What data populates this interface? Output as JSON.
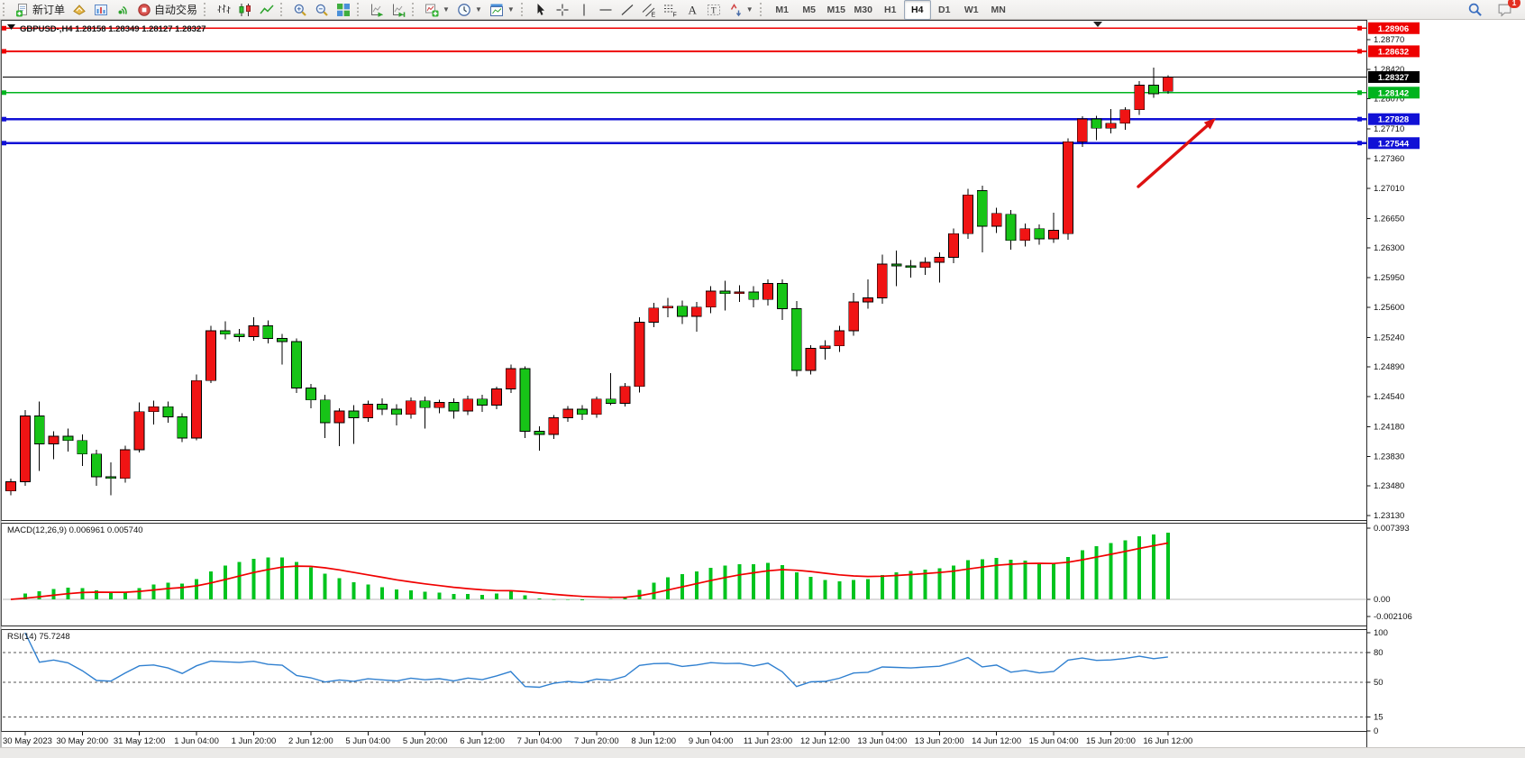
{
  "toolbar": {
    "groups": [
      {
        "items": [
          {
            "name": "new-order",
            "icon": "new-order-icon",
            "label": "新订单"
          },
          {
            "name": "quotes",
            "icon": "quotes-icon"
          },
          {
            "name": "charts",
            "icon": "charts-icon"
          },
          {
            "name": "signals",
            "icon": "signals-icon"
          },
          {
            "name": "autotrading",
            "icon": "autotrading-icon",
            "label": "自动交易"
          }
        ]
      },
      {
        "items": [
          {
            "name": "bar-chart-mode",
            "icon": "bars-icon"
          },
          {
            "name": "candle-chart-mode",
            "icon": "candles-icon"
          },
          {
            "name": "line-chart-mode",
            "icon": "line-icon"
          }
        ]
      },
      {
        "items": [
          {
            "name": "zoom-in",
            "icon": "zoom-in-icon"
          },
          {
            "name": "zoom-out",
            "icon": "zoom-out-icon"
          },
          {
            "name": "tile-windows",
            "icon": "tile-icon"
          }
        ]
      },
      {
        "items": [
          {
            "name": "auto-scroll",
            "icon": "autoscroll-icon"
          },
          {
            "name": "chart-shift",
            "icon": "shift-icon"
          }
        ]
      },
      {
        "items": [
          {
            "name": "indicators",
            "icon": "indicators-icon",
            "dropdown": true
          },
          {
            "name": "periods",
            "icon": "clock-icon",
            "dropdown": true
          },
          {
            "name": "templates",
            "icon": "template-icon",
            "dropdown": true
          }
        ]
      },
      {
        "items": [
          {
            "name": "cursor",
            "icon": "cursor-icon"
          },
          {
            "name": "crosshair",
            "icon": "crosshair-icon"
          },
          {
            "name": "vertical-line-tool",
            "icon": "vline-icon"
          },
          {
            "name": "horizontal-line-tool",
            "icon": "hline-icon"
          },
          {
            "name": "trendline-tool",
            "icon": "trendline-icon"
          },
          {
            "name": "equidistant-channel-tool",
            "icon": "channel-icon"
          },
          {
            "name": "fibonacci-tool",
            "icon": "fibo-icon"
          },
          {
            "name": "text-tool",
            "icon": "text-icon"
          },
          {
            "name": "text-label-tool",
            "icon": "label-icon"
          },
          {
            "name": "arrows-tool",
            "icon": "arrows-icon",
            "dropdown": true
          }
        ]
      },
      {
        "items": [
          {
            "name": "tf-m1",
            "label": "M1",
            "tf": true
          },
          {
            "name": "tf-m5",
            "label": "M5",
            "tf": true
          },
          {
            "name": "tf-m15",
            "label": "M15",
            "tf": true
          },
          {
            "name": "tf-m30",
            "label": "M30",
            "tf": true
          },
          {
            "name": "tf-h1",
            "label": "H1",
            "tf": true
          },
          {
            "name": "tf-h4",
            "label": "H4",
            "tf": true,
            "active": true
          },
          {
            "name": "tf-d1",
            "label": "D1",
            "tf": true
          },
          {
            "name": "tf-w1",
            "label": "W1",
            "tf": true
          },
          {
            "name": "tf-mn",
            "label": "MN",
            "tf": true
          }
        ]
      }
    ],
    "right": [
      {
        "name": "search",
        "icon": "search-icon"
      },
      {
        "name": "community",
        "icon": "chat-icon",
        "badge": "1"
      }
    ]
  },
  "chart_title": {
    "symbol_period": "GBPUSD-,H4",
    "ohlc": "1.28158 1.28349 1.28127 1.28327"
  },
  "chart_data": {
    "type": "candlestick",
    "symbol": "GBPUSD",
    "timeframe": "H4",
    "up_color": "#f01414",
    "down_color": "#17c417",
    "wick_color": "#000000",
    "candles": [
      [
        1.2342,
        1.2357,
        1.2337,
        1.2353
      ],
      [
        1.2353,
        1.2438,
        1.2348,
        1.2431
      ],
      [
        1.2431,
        1.2448,
        1.2366,
        1.2398
      ],
      [
        1.2398,
        1.2413,
        1.238,
        1.2407
      ],
      [
        1.2407,
        1.2416,
        1.2389,
        1.2402
      ],
      [
        1.2402,
        1.2409,
        1.2372,
        1.2386
      ],
      [
        1.2386,
        1.2391,
        1.2348,
        1.2359
      ],
      [
        1.2359,
        1.2376,
        1.2337,
        1.2357
      ],
      [
        1.2357,
        1.2396,
        1.2352,
        1.2391
      ],
      [
        1.2391,
        1.2447,
        1.2388,
        1.2436
      ],
      [
        1.2436,
        1.2449,
        1.2421,
        1.2442
      ],
      [
        1.2442,
        1.2448,
        1.2423,
        1.243
      ],
      [
        1.243,
        1.2434,
        1.24,
        1.2405
      ],
      [
        1.2405,
        1.248,
        1.2402,
        1.2473
      ],
      [
        1.2473,
        1.2538,
        1.247,
        1.2532
      ],
      [
        1.2532,
        1.2543,
        1.2522,
        1.2528
      ],
      [
        1.2528,
        1.2534,
        1.2519,
        1.2525
      ],
      [
        1.2525,
        1.2548,
        1.252,
        1.2538
      ],
      [
        1.2538,
        1.2544,
        1.2517,
        1.2523
      ],
      [
        1.2523,
        1.2528,
        1.2492,
        1.2519
      ],
      [
        1.2519,
        1.2523,
        1.2458,
        1.2464
      ],
      [
        1.2464,
        1.2469,
        1.244,
        1.245
      ],
      [
        1.245,
        1.2456,
        1.2405,
        1.2423
      ],
      [
        1.2423,
        1.244,
        1.2395,
        1.2437
      ],
      [
        1.2437,
        1.2444,
        1.2398,
        1.2429
      ],
      [
        1.2429,
        1.2449,
        1.2424,
        1.2445
      ],
      [
        1.2445,
        1.2452,
        1.2432,
        1.2439
      ],
      [
        1.2439,
        1.2445,
        1.242,
        1.2433
      ],
      [
        1.2433,
        1.2453,
        1.2428,
        1.2449
      ],
      [
        1.2449,
        1.2454,
        1.2416,
        1.2441
      ],
      [
        1.2441,
        1.245,
        1.2434,
        1.2447
      ],
      [
        1.2447,
        1.2452,
        1.2428,
        1.2437
      ],
      [
        1.2437,
        1.2455,
        1.2432,
        1.2451
      ],
      [
        1.2451,
        1.2456,
        1.2436,
        1.2444
      ],
      [
        1.2444,
        1.2466,
        1.2439,
        1.2463
      ],
      [
        1.2463,
        1.2492,
        1.2458,
        1.2487
      ],
      [
        1.2487,
        1.249,
        1.2405,
        1.2413
      ],
      [
        1.2413,
        1.2419,
        1.239,
        1.2409
      ],
      [
        1.2409,
        1.2432,
        1.2404,
        1.2429
      ],
      [
        1.2429,
        1.2443,
        1.2424,
        1.2439
      ],
      [
        1.2439,
        1.2444,
        1.2426,
        1.2433
      ],
      [
        1.2433,
        1.2454,
        1.2429,
        1.2451
      ],
      [
        1.2451,
        1.2482,
        1.2444,
        1.2446
      ],
      [
        1.2446,
        1.247,
        1.2442,
        1.2466
      ],
      [
        1.2466,
        1.2548,
        1.2459,
        1.2542
      ],
      [
        1.2542,
        1.2565,
        1.2536,
        1.2559
      ],
      [
        1.2559,
        1.2571,
        1.2548,
        1.2561
      ],
      [
        1.2561,
        1.2568,
        1.254,
        1.2549
      ],
      [
        1.2549,
        1.2566,
        1.2531,
        1.256
      ],
      [
        1.256,
        1.2585,
        1.2553,
        1.2579
      ],
      [
        1.2579,
        1.2591,
        1.2556,
        1.2576
      ],
      [
        1.2576,
        1.2586,
        1.2566,
        1.2578
      ],
      [
        1.2578,
        1.2585,
        1.256,
        1.2569
      ],
      [
        1.2569,
        1.2593,
        1.2562,
        1.2588
      ],
      [
        1.2588,
        1.2593,
        1.2545,
        1.2558
      ],
      [
        1.2558,
        1.2567,
        1.2478,
        1.2485
      ],
      [
        1.2485,
        1.2515,
        1.248,
        1.2511
      ],
      [
        1.2511,
        1.2521,
        1.2498,
        1.2514
      ],
      [
        1.2514,
        1.2538,
        1.2507,
        1.2532
      ],
      [
        1.2532,
        1.2577,
        1.2526,
        1.2566
      ],
      [
        1.2566,
        1.2593,
        1.2558,
        1.2571
      ],
      [
        1.2571,
        1.2622,
        1.2564,
        1.2611
      ],
      [
        1.2611,
        1.2627,
        1.2585,
        1.2609
      ],
      [
        1.2609,
        1.2616,
        1.2595,
        1.2607
      ],
      [
        1.2607,
        1.2619,
        1.2598,
        1.2613
      ],
      [
        1.2613,
        1.2625,
        1.2589,
        1.2619
      ],
      [
        1.2619,
        1.2653,
        1.2612,
        1.2647
      ],
      [
        1.2647,
        1.27,
        1.2641,
        1.2693
      ],
      [
        1.2698,
        1.2704,
        1.2625,
        1.2656
      ],
      [
        1.2656,
        1.2678,
        1.2648,
        1.2671
      ],
      [
        1.267,
        1.2675,
        1.2628,
        1.2639
      ],
      [
        1.2639,
        1.2659,
        1.2632,
        1.2653
      ],
      [
        1.2653,
        1.2658,
        1.2634,
        1.2641
      ],
      [
        1.2641,
        1.2672,
        1.2636,
        1.2651
      ],
      [
        1.2647,
        1.276,
        1.264,
        1.2756
      ],
      [
        1.2756,
        1.2786,
        1.275,
        1.2783
      ],
      [
        1.2783,
        1.2787,
        1.2758,
        1.2772
      ],
      [
        1.2772,
        1.2795,
        1.2766,
        1.2778
      ],
      [
        1.2778,
        1.2797,
        1.277,
        1.2794
      ],
      [
        1.2794,
        1.2828,
        1.2788,
        1.2823
      ],
      [
        1.2823,
        1.2844,
        1.2808,
        1.2813
      ],
      [
        1.28158,
        1.28349,
        1.28127,
        1.28327
      ]
    ],
    "x_labels": [
      "30 May 2023",
      "30 May 20:00",
      "31 May 12:00",
      "1 Jun 04:00",
      "1 Jun 20:00",
      "2 Jun 12:00",
      "5 Jun 04:00",
      "5 Jun 20:00",
      "6 Jun 12:00",
      "7 Jun 04:00",
      "7 Jun 20:00",
      "8 Jun 12:00",
      "9 Jun 04:00",
      "11 Jun 23:00",
      "12 Jun 12:00",
      "13 Jun 04:00",
      "13 Jun 20:00",
      "14 Jun 12:00",
      "15 Jun 04:00",
      "15 Jun 20:00",
      "16 Jun 12:00"
    ],
    "y_ticks": [
      "1.28770",
      "1.28420",
      "1.28070",
      "1.27710",
      "1.27360",
      "1.27010",
      "1.26650",
      "1.26300",
      "1.25950",
      "1.25600",
      "1.25240",
      "1.24890",
      "1.24540",
      "1.24180",
      "1.23830",
      "1.23480",
      "1.23130"
    ],
    "current_price": {
      "label": "1.28327",
      "price": 1.28327,
      "color": "#000000"
    },
    "levels": [
      {
        "label": "1.28906",
        "price": 1.28906,
        "color": "#ee0000",
        "width": 1.8
      },
      {
        "label": "1.28632",
        "price": 1.28632,
        "color": "#ee0000",
        "width": 1.8
      },
      {
        "label": "1.28142",
        "price": 1.28142,
        "color": "#00b41e",
        "width": 1.8
      },
      {
        "label": "1.27828",
        "price": 1.27828,
        "color": "#1111d6",
        "width": 2.2
      },
      {
        "label": "1.27544",
        "price": 1.27544,
        "color": "#1111d6",
        "width": 2.2
      }
    ],
    "indicators": {
      "macd": {
        "name": "MACD(12,26,9)",
        "value": "0.006961",
        "signal_value": "0.005740",
        "axis_labels": [
          "0.007393",
          "0.00",
          "-0.002106"
        ],
        "histogram_color": "#00c41e",
        "signal_color": "#f00000",
        "fast": 12,
        "slow": 26,
        "signal": 9
      },
      "rsi": {
        "name": "RSI(14)",
        "value": "75.7248",
        "period": 14,
        "levels": [
          80,
          50,
          15
        ],
        "axis_labels": [
          "100",
          "80",
          "50",
          "15",
          "0"
        ],
        "line_color": "#3080d0"
      }
    },
    "annotation_arrow": {
      "from": {
        "x": 1263,
        "y": 207
      },
      "to": {
        "x": 1349,
        "y": 131
      },
      "color": "#dd1111"
    }
  }
}
